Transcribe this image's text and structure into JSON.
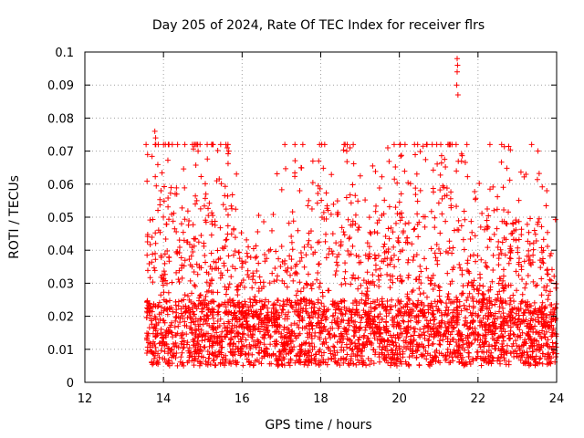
{
  "chart_data": {
    "type": "scatter",
    "title": "Day 205 of 2024, Rate Of TEC Index for receiver flrs",
    "xlabel": "GPS time / hours",
    "ylabel": "ROTI / TECUs",
    "xlim": [
      12,
      24
    ],
    "ylim": [
      0,
      0.1
    ],
    "xticks": [
      "12",
      "14",
      "16",
      "18",
      "20",
      "22",
      "24"
    ],
    "yticks": [
      "0",
      "0.01",
      "0.02",
      "0.03",
      "0.04",
      "0.05",
      "0.06",
      "0.07",
      "0.08",
      "0.09",
      "0.1"
    ],
    "grid": true,
    "marker": "+",
    "color": "#ff0000",
    "series": [
      {
        "name": "ROTI",
        "x_range": [
          13.55,
          24.0
        ],
        "baseline_range": [
          0.005,
          0.025
        ],
        "notable_points": [
          {
            "x": 13.78,
            "y": 0.076
          },
          {
            "x": 13.8,
            "y": 0.074
          },
          {
            "x": 14.85,
            "y": 0.072
          },
          {
            "x": 14.88,
            "y": 0.07
          },
          {
            "x": 15.62,
            "y": 0.071
          },
          {
            "x": 15.66,
            "y": 0.07
          },
          {
            "x": 17.8,
            "y": 0.067
          },
          {
            "x": 18.62,
            "y": 0.072
          },
          {
            "x": 18.66,
            "y": 0.07
          },
          {
            "x": 21.47,
            "y": 0.098
          },
          {
            "x": 21.48,
            "y": 0.096
          },
          {
            "x": 21.47,
            "y": 0.094
          },
          {
            "x": 21.46,
            "y": 0.09
          },
          {
            "x": 21.49,
            "y": 0.087
          },
          {
            "x": 21.45,
            "y": 0.064
          },
          {
            "x": 23.22,
            "y": 0.063
          },
          {
            "x": 23.75,
            "y": 0.058
          }
        ]
      }
    ]
  }
}
